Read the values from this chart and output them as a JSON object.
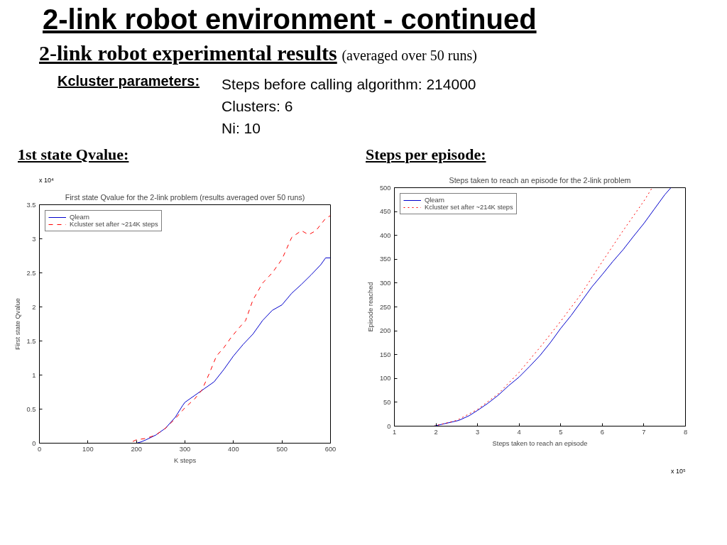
{
  "chart_data": [
    {
      "type": "line",
      "title": "First state Qvalue for the 2-link problem (results averaged over 50 runs)",
      "xlabel": "K steps",
      "ylabel": "First state Qvalue",
      "annotations": [
        "2-link robot environment - continued",
        "2-link robot experimental results",
        "(averaged over 50 runs)",
        "Kcluster parameters:",
        "Steps before calling algorithm: 214000",
        "Clusters: 6",
        "Ni: 10",
        "1st state Qvalue:",
        "x 10⁴"
      ],
      "xlim": [
        0,
        600
      ],
      "xticks": [
        0,
        100,
        200,
        300,
        400,
        500,
        600
      ],
      "ylim": [
        0,
        3.5
      ],
      "yticks": [
        0,
        0.5,
        1,
        1.5,
        2,
        2.5,
        3,
        3.5
      ],
      "grid": false,
      "legend": "top left",
      "series": [
        {
          "name": "Qlearn",
          "color": "#0000cc",
          "line_style": "solid",
          "x": [
            0,
            100,
            200,
            210,
            220,
            240,
            260,
            280,
            295,
            300,
            320,
            340,
            360,
            380,
            400,
            420,
            440,
            460,
            480,
            500,
            520,
            540,
            560,
            580,
            590,
            600
          ],
          "values": [
            0,
            0,
            0,
            0.02,
            0.05,
            0.12,
            0.22,
            0.38,
            0.55,
            0.6,
            0.7,
            0.8,
            0.9,
            1.08,
            1.28,
            1.45,
            1.6,
            1.8,
            1.95,
            2.03,
            2.2,
            2.33,
            2.47,
            2.62,
            2.72,
            2.72
          ]
        },
        {
          "name": "Kcluster set after ~214K steps",
          "color": "#ff0000",
          "line_style": "dashed",
          "x": [
            0,
            100,
            185,
            200,
            220,
            240,
            260,
            280,
            300,
            320,
            335,
            350,
            365,
            380,
            395,
            410,
            425,
            440,
            460,
            480,
            500,
            520,
            540,
            555,
            570,
            590,
            600
          ],
          "values": [
            0,
            0,
            0,
            0.05,
            0.07,
            0.12,
            0.22,
            0.36,
            0.52,
            0.65,
            0.78,
            1.02,
            1.28,
            1.4,
            1.55,
            1.68,
            1.8,
            2.1,
            2.35,
            2.5,
            2.7,
            3.02,
            3.12,
            3.06,
            3.12,
            3.3,
            3.34
          ]
        }
      ]
    },
    {
      "type": "line",
      "title": "Steps taken to reach an episode for the 2-link problem",
      "xlabel": "Steps taken to reach an episode",
      "ylabel": "Episode reached",
      "annotations": [
        "Steps per episode:",
        "x 10⁵"
      ],
      "xlim": [
        1,
        8
      ],
      "xticks": [
        1,
        2,
        3,
        4,
        5,
        6,
        7,
        8
      ],
      "ylim": [
        0,
        500
      ],
      "yticks": [
        0,
        50,
        100,
        150,
        200,
        250,
        300,
        350,
        400,
        450,
        500
      ],
      "grid": false,
      "legend": "top left",
      "series": [
        {
          "name": "Qlearn",
          "color": "#0000cc",
          "line_style": "solid",
          "x": [
            1.95,
            2.2,
            2.55,
            2.8,
            3,
            3.25,
            3.5,
            3.75,
            4,
            4.25,
            4.5,
            4.75,
            5,
            5.25,
            5.5,
            5.75,
            6,
            6.25,
            6.5,
            6.75,
            7,
            7.25,
            7.5,
            7.65
          ],
          "values": [
            0,
            5,
            12,
            22,
            33,
            48,
            65,
            85,
            103,
            125,
            148,
            175,
            205,
            232,
            262,
            292,
            318,
            345,
            370,
            398,
            425,
            455,
            485,
            500
          ]
        },
        {
          "name": "Kcluster set after ~214K steps",
          "color": "#ff0000",
          "line_style": "dotted",
          "x": [
            1.95,
            2.5,
            3,
            3.5,
            4,
            4.5,
            5,
            5.5,
            6,
            6.5,
            7,
            7.2
          ],
          "values": [
            0,
            12,
            35,
            68,
            113,
            165,
            220,
            278,
            345,
            410,
            472,
            500
          ]
        }
      ]
    }
  ]
}
